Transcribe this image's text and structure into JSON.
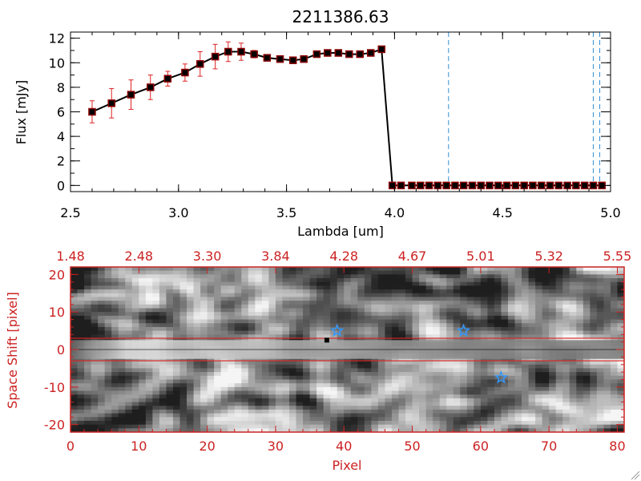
{
  "chart_data": [
    {
      "type": "line",
      "title": "2211386.63",
      "xlabel": "Lambda [um]",
      "ylabel": "Flux [mJy]",
      "xlim": [
        2.5,
        5.0
      ],
      "ylim": [
        -0.5,
        12.5
      ],
      "x_ticks": [
        "2.5",
        "3.0",
        "3.5",
        "4.0",
        "4.5",
        "5.0"
      ],
      "y_ticks": [
        "0",
        "2",
        "4",
        "6",
        "8",
        "10",
        "12"
      ],
      "series": [
        {
          "x": [
            2.6,
            2.69,
            2.78,
            2.87,
            2.95,
            3.03,
            3.1,
            3.17,
            3.23,
            3.29,
            3.35,
            3.41,
            3.47,
            3.53,
            3.58,
            3.64,
            3.69,
            3.74,
            3.79,
            3.84,
            3.89,
            3.94,
            3.99,
            4.03,
            4.08,
            4.12,
            4.16,
            4.2,
            4.24,
            4.28,
            4.32,
            4.36,
            4.4,
            4.44,
            4.48,
            4.52,
            4.56,
            4.6,
            4.64,
            4.68,
            4.72,
            4.76,
            4.8,
            4.84,
            4.88,
            4.92,
            4.96
          ],
          "y": [
            6.0,
            6.7,
            7.4,
            8.0,
            8.7,
            9.2,
            9.9,
            10.5,
            10.9,
            10.9,
            10.7,
            10.4,
            10.3,
            10.2,
            10.3,
            10.7,
            10.8,
            10.8,
            10.7,
            10.7,
            10.8,
            11.1,
            0.0,
            0.0,
            0.0,
            0.0,
            0.0,
            0.0,
            0.0,
            0.0,
            0.0,
            0.0,
            0.0,
            0.0,
            0.0,
            0.0,
            0.0,
            0.0,
            0.0,
            0.0,
            0.0,
            0.0,
            0.0,
            0.0,
            0.0,
            0.0,
            0.0
          ],
          "yerr": [
            0.9,
            1.2,
            1.2,
            1.0,
            0.6,
            0.7,
            1.0,
            1.0,
            0.8,
            0.7,
            0.3,
            0.2,
            0.2,
            0.2,
            0.2,
            0.2,
            0.2,
            0.2,
            0.2,
            0.2,
            0.2,
            0.2,
            0,
            0,
            0,
            0,
            0,
            0,
            0,
            0,
            0,
            0,
            0,
            0,
            0,
            0,
            0,
            0,
            0,
            0,
            0,
            0,
            0,
            0,
            0,
            0,
            0
          ],
          "color": "#000000",
          "marker_color": "#8b0000",
          "error_color": "#dd2222"
        }
      ],
      "vlines": [
        4.25,
        4.92,
        4.95
      ],
      "vline_color": "#2f8fd8",
      "hline": 0,
      "hline_color": "#dd2222"
    },
    {
      "type": "heatmap",
      "xlabel": "Pixel",
      "ylabel": "Space Shift [pixel]",
      "xlim": [
        0,
        81
      ],
      "ylim": [
        -22,
        22
      ],
      "x_ticks": [
        "0",
        "10",
        "20",
        "30",
        "40",
        "50",
        "60",
        "70",
        "80"
      ],
      "y_ticks": [
        "-20",
        "-10",
        "0",
        "10",
        "20"
      ],
      "top_ticks": [
        "1.48",
        "2.48",
        "3.30",
        "3.84",
        "4.28",
        "4.67",
        "5.01",
        "5.32",
        "5.55"
      ],
      "colormap": "grayscale",
      "aperture_lines": [
        3,
        -3
      ],
      "aperture_color": "#dd2222",
      "axis_color": "#cc2222",
      "star_markers": [
        {
          "x": 39,
          "y": 5
        },
        {
          "x": 57.5,
          "y": 5
        },
        {
          "x": 63,
          "y": -7.5
        }
      ],
      "star_color": "#3399ff",
      "source_marker": {
        "x": 37.5,
        "y": 2.5
      },
      "source_color": "#000000"
    }
  ]
}
